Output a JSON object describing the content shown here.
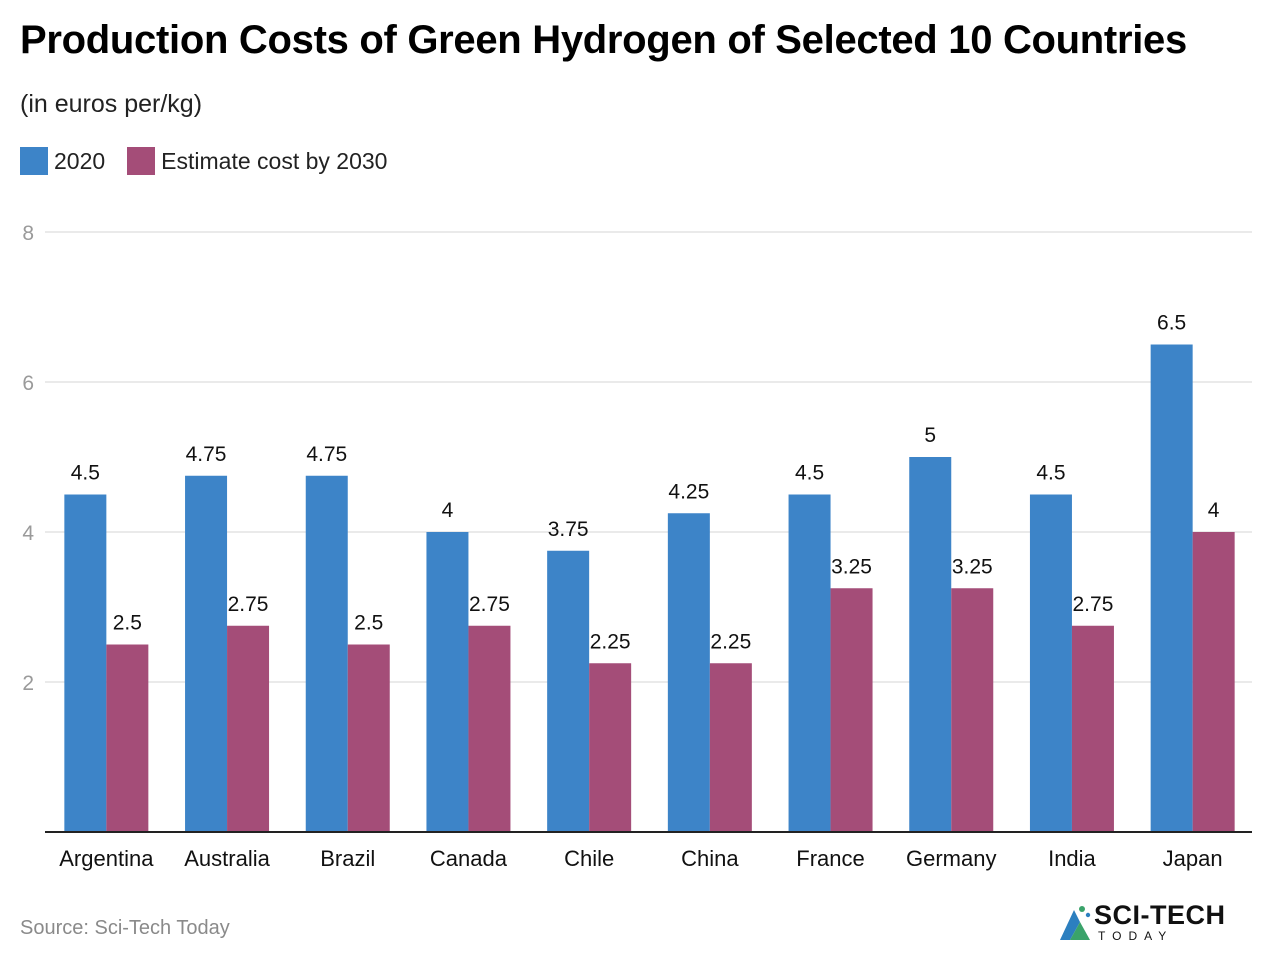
{
  "chart_data": {
    "type": "bar",
    "title": "Production Costs of Green Hydrogen of Selected 10 Countries",
    "subtitle": "(in euros per/kg)",
    "xlabel": "",
    "ylabel": "",
    "ylim": [
      0,
      8
    ],
    "yticks": [
      2,
      4,
      6,
      8
    ],
    "grid": true,
    "legend_position": "top-left",
    "categories": [
      "Argentina",
      "Australia",
      "Brazil",
      "Canada",
      "Chile",
      "China",
      "France",
      "Germany",
      "India",
      "Japan"
    ],
    "series": [
      {
        "name": "2020",
        "color": "#3d84c8",
        "values": [
          4.5,
          4.75,
          4.75,
          4,
          3.75,
          4.25,
          4.5,
          5,
          4.5,
          6.5
        ]
      },
      {
        "name": "Estimate cost by 2030",
        "color": "#a44d78",
        "values": [
          2.5,
          2.75,
          2.5,
          2.75,
          2.25,
          2.25,
          3.25,
          3.25,
          2.75,
          4
        ]
      }
    ]
  },
  "footer": {
    "source": "Source: Sci-Tech Today",
    "logo_text": "SCI-TECH",
    "logo_sub": "TODAY"
  }
}
